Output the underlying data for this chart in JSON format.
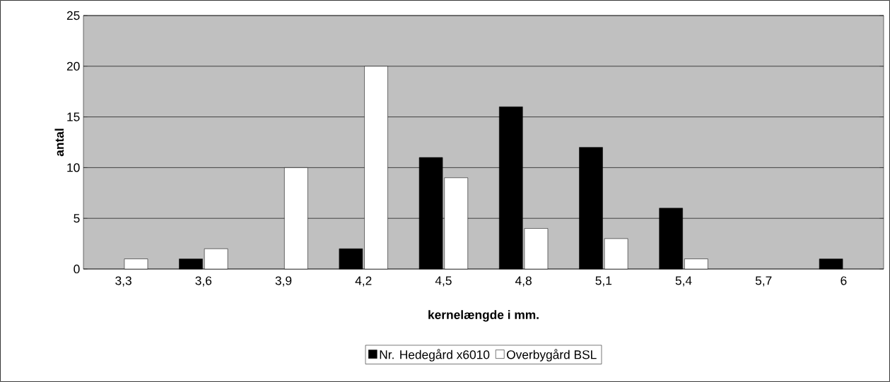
{
  "chart_data": {
    "type": "bar",
    "xlabel": "kernelængde i mm.",
    "ylabel": "antal",
    "categories": [
      "3,3",
      "3,6",
      "3,9",
      "4,2",
      "4,5",
      "4,8",
      "5,1",
      "5,4",
      "5,7",
      "6"
    ],
    "series": [
      {
        "name": "Nr. Hedegård x6010",
        "color": "#000000",
        "values": [
          0,
          1,
          0,
          2,
          11,
          16,
          12,
          6,
          0,
          1
        ]
      },
      {
        "name": "Overbygård BSL",
        "color": "#ffffff",
        "values": [
          1,
          2,
          10,
          20,
          9,
          4,
          3,
          1,
          0,
          0
        ]
      }
    ],
    "ylim": [
      0,
      25
    ],
    "yticks": [
      0,
      5,
      10,
      15,
      20,
      25
    ],
    "grid": "y",
    "legend": "bottom"
  }
}
